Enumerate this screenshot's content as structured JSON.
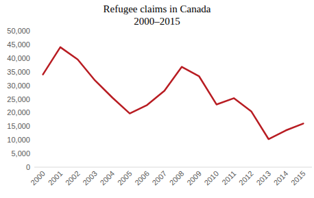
{
  "chart_data": {
    "type": "line",
    "title": "Refugee claims in Canada",
    "subtitle": "2000–2015",
    "categories": [
      "2000",
      "2001",
      "2002",
      "2003",
      "2004",
      "2005",
      "2006",
      "2007",
      "2008",
      "2009",
      "2010",
      "2011",
      "2012",
      "2013",
      "2014",
      "2015"
    ],
    "values": [
      34000,
      44000,
      39500,
      31800,
      25500,
      19700,
      22800,
      28000,
      36800,
      33300,
      23000,
      25300,
      20500,
      10300,
      13500,
      16000
    ],
    "color": "#b81c22",
    "ylim": [
      0,
      50000
    ],
    "yticks": [
      0,
      {
        "value": 5000,
        "label": "5,000"
      },
      {
        "value": 10000,
        "label": "10,000"
      },
      {
        "value": 15000,
        "label": "15,000"
      },
      {
        "value": 20000,
        "label": "20,000"
      },
      {
        "value": 25000,
        "label": "25,000"
      },
      {
        "value": 30000,
        "label": "30,000"
      },
      {
        "value": 35000,
        "label": "35,000"
      },
      {
        "value": 40000,
        "label": "40,000"
      },
      {
        "value": 45000,
        "label": "45,000"
      },
      {
        "value": 50000,
        "label": "50,000"
      }
    ],
    "grid": false
  }
}
